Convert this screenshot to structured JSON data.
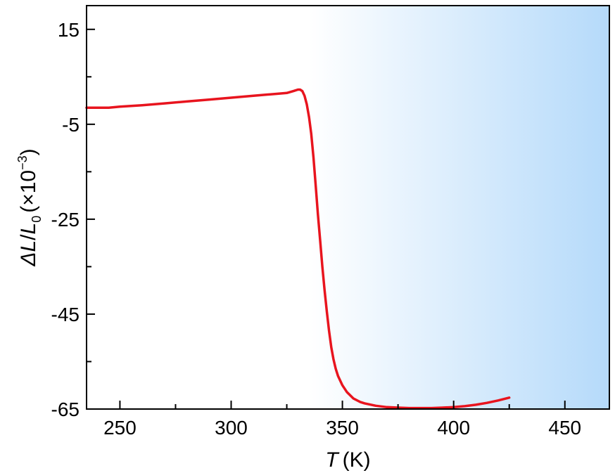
{
  "chart_data": {
    "type": "line",
    "xlabel": {
      "italic": "T",
      "rest": "(K)"
    },
    "ylabel": {
      "delta": "Δ",
      "L1": "L",
      "slash": "/",
      "L2": "L",
      "sub": "0",
      "unit_open": "(×10",
      "exp": "−3",
      "unit_close": ")"
    },
    "xlim": [
      235,
      470
    ],
    "ylim": [
      -65,
      20
    ],
    "x_ticks": [
      250,
      300,
      350,
      400,
      450
    ],
    "x_tick_labels": [
      "250",
      "300",
      "350",
      "400",
      "450"
    ],
    "y_ticks": [
      15,
      -5,
      -25,
      -45,
      -65
    ],
    "y_tick_labels": [
      "15",
      "-5",
      "-25",
      "-45",
      "-65"
    ],
    "background_gradient": {
      "from": "#ffffff",
      "to": "#b5dafa",
      "start_x": 335,
      "end_x": 470
    },
    "grid": false,
    "legend": "none",
    "series": [
      {
        "color": "#e8141e",
        "x": [
          235,
          240,
          245,
          250,
          260,
          270,
          280,
          290,
          300,
          310,
          320,
          325,
          328,
          330,
          331,
          332,
          333,
          334,
          335,
          336,
          337,
          338,
          339,
          340,
          341,
          342,
          343,
          344,
          345,
          346,
          347,
          348,
          350,
          352,
          355,
          358,
          360,
          365,
          370,
          375,
          380,
          385,
          390,
          395,
          400,
          405,
          410,
          415,
          420,
          425
        ],
        "y": [
          -1.5,
          -1.5,
          -1.5,
          -1.3,
          -1.0,
          -0.6,
          -0.2,
          0.2,
          0.6,
          1.0,
          1.4,
          1.6,
          2.0,
          2.3,
          2.3,
          2.0,
          1.0,
          -0.8,
          -3.5,
          -7.0,
          -12.0,
          -18.0,
          -24.0,
          -29.5,
          -35.0,
          -40.0,
          -44.5,
          -48.5,
          -52.0,
          -54.5,
          -56.5,
          -58.0,
          -60.0,
          -61.4,
          -62.8,
          -63.5,
          -63.8,
          -64.3,
          -64.6,
          -64.7,
          -64.8,
          -64.8,
          -64.8,
          -64.7,
          -64.6,
          -64.4,
          -64.1,
          -63.7,
          -63.2,
          -62.6
        ]
      }
    ]
  }
}
